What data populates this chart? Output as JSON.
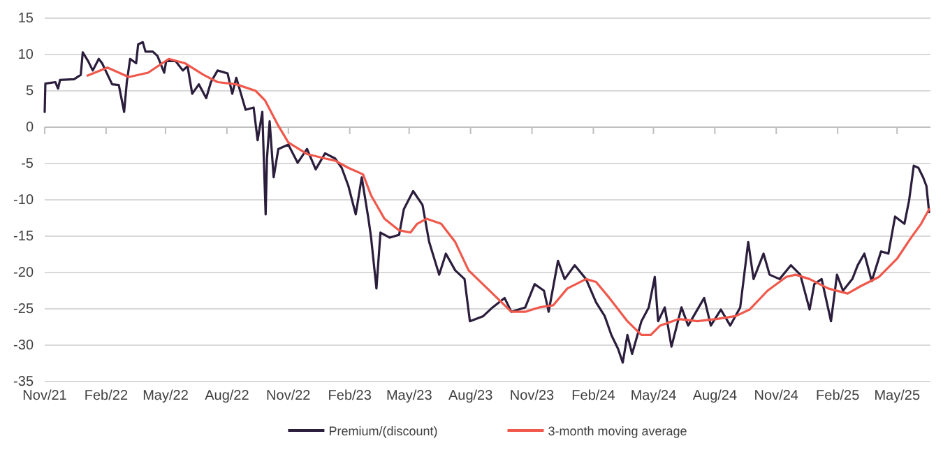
{
  "chart_data": {
    "type": "line",
    "xlim": [
      "2021-11-01",
      "2025-06-20"
    ],
    "xticks": [
      {
        "value": "2021-11-01",
        "label": "Nov/21"
      },
      {
        "value": "2022-02-01",
        "label": "Feb/22"
      },
      {
        "value": "2022-05-01",
        "label": "May/22"
      },
      {
        "value": "2022-08-01",
        "label": "Aug/22"
      },
      {
        "value": "2022-11-01",
        "label": "Nov/22"
      },
      {
        "value": "2023-02-01",
        "label": "Feb/23"
      },
      {
        "value": "2023-05-01",
        "label": "May/23"
      },
      {
        "value": "2023-08-01",
        "label": "Aug/23"
      },
      {
        "value": "2023-11-01",
        "label": "Nov/23"
      },
      {
        "value": "2024-02-01",
        "label": "Feb/24"
      },
      {
        "value": "2024-05-01",
        "label": "May/24"
      },
      {
        "value": "2024-08-01",
        "label": "Aug/24"
      },
      {
        "value": "2024-11-01",
        "label": "Nov/24"
      },
      {
        "value": "2025-02-01",
        "label": "Feb/25"
      },
      {
        "value": "2025-05-01",
        "label": "May/25"
      }
    ],
    "ylim": [
      -35,
      15
    ],
    "yticks": [
      -35,
      -30,
      -25,
      -20,
      -15,
      -10,
      -5,
      0,
      5,
      10,
      15
    ],
    "grid": "y",
    "legend": "bottom",
    "ref_lines": [
      {
        "axis": "y",
        "value": 0,
        "color": "#bfbfbf"
      }
    ],
    "line_style": "solid",
    "marker": "none",
    "series": [
      {
        "name": "Premium/(discount)",
        "color": "#2b1d3c",
        "x": [
          "2021-11-01",
          "2021-11-02",
          "2021-11-17",
          "2021-11-21",
          "2021-11-24",
          "2021-12-15",
          "2021-12-25",
          "2021-12-28",
          "2022-01-05",
          "2022-01-12",
          "2022-01-21",
          "2022-01-26",
          "2022-02-10",
          "2022-02-20",
          "2022-02-28",
          "2022-03-04",
          "2022-03-09",
          "2022-03-18",
          "2022-03-21",
          "2022-03-28",
          "2022-04-01",
          "2022-04-12",
          "2022-04-19",
          "2022-04-29",
          "2022-05-02",
          "2022-05-16",
          "2022-05-27",
          "2022-06-03",
          "2022-06-10",
          "2022-06-20",
          "2022-07-01",
          "2022-07-08",
          "2022-07-18",
          "2022-08-02",
          "2022-08-09",
          "2022-08-15",
          "2022-08-22",
          "2022-08-29",
          "2022-09-10",
          "2022-09-16",
          "2022-09-23",
          "2022-09-28",
          "2022-09-30",
          "2022-10-04",
          "2022-10-10",
          "2022-10-17",
          "2022-11-01",
          "2022-11-15",
          "2022-11-29",
          "2022-12-12",
          "2022-12-26",
          "2023-01-10",
          "2023-01-20",
          "2023-01-30",
          "2023-02-10",
          "2023-02-19",
          "2023-03-01",
          "2023-03-05",
          "2023-03-13",
          "2023-03-19",
          "2023-04-02",
          "2023-04-16",
          "2023-04-23",
          "2023-05-07",
          "2023-05-21",
          "2023-05-31",
          "2023-06-15",
          "2023-06-25",
          "2023-07-09",
          "2023-07-23",
          "2023-07-31",
          "2023-08-20",
          "2023-09-03",
          "2023-09-21",
          "2023-10-01",
          "2023-10-22",
          "2023-11-05",
          "2023-11-19",
          "2023-11-26",
          "2023-12-10",
          "2023-12-20",
          "2024-01-04",
          "2024-01-21",
          "2024-02-05",
          "2024-02-18",
          "2024-02-28",
          "2024-03-09",
          "2024-03-16",
          "2024-03-23",
          "2024-03-30",
          "2024-04-13",
          "2024-04-24",
          "2024-05-03",
          "2024-05-08",
          "2024-05-18",
          "2024-05-28",
          "2024-06-12",
          "2024-06-22",
          "2024-07-16",
          "2024-07-26",
          "2024-08-10",
          "2024-08-24",
          "2024-09-08",
          "2024-09-20",
          "2024-09-28",
          "2024-10-13",
          "2024-10-22",
          "2024-11-06",
          "2024-11-23",
          "2024-12-07",
          "2024-12-21",
          "2024-12-28",
          "2025-01-08",
          "2025-01-22",
          "2025-01-31",
          "2025-02-09",
          "2025-02-23",
          "2025-03-03",
          "2025-03-13",
          "2025-03-24",
          "2025-04-07",
          "2025-04-18",
          "2025-04-28",
          "2025-05-12",
          "2025-05-19",
          "2025-05-26",
          "2025-06-02",
          "2025-06-09",
          "2025-06-14",
          "2025-06-18"
        ],
        "values": [
          2.1,
          6.0,
          6.2,
          5.3,
          6.5,
          6.6,
          7.2,
          10.3,
          9.1,
          7.8,
          9.4,
          8.8,
          5.9,
          5.8,
          2.1,
          6.2,
          9.4,
          8.8,
          11.4,
          11.7,
          10.4,
          10.4,
          9.8,
          7.5,
          9.1,
          9.1,
          7.8,
          8.4,
          4.6,
          5.9,
          4.0,
          6.2,
          7.8,
          7.4,
          4.6,
          6.8,
          4.6,
          2.4,
          2.7,
          -1.8,
          2.1,
          -12,
          -4.3,
          0.8,
          -6.9,
          -3.0,
          -2.4,
          -4.9,
          -3.0,
          -5.8,
          -3.6,
          -4.3,
          -5.6,
          -8.1,
          -12,
          -6.9,
          -12.6,
          -15.2,
          -22.2,
          -14.5,
          -15.2,
          -14.8,
          -11.3,
          -8.8,
          -10.7,
          -15.8,
          -20.3,
          -17.4,
          -19.7,
          -20.9,
          -26.7,
          -26,
          -24.8,
          -23.5,
          -25.4,
          -24.8,
          -21.6,
          -22.5,
          -25.4,
          -18.4,
          -20.9,
          -19.0,
          -20.9,
          -24.1,
          -26,
          -28.6,
          -30.5,
          -32.4,
          -28.6,
          -31.2,
          -26.7,
          -24.8,
          -20.6,
          -26.7,
          -24.8,
          -30.2,
          -24.8,
          -27.3,
          -23.5,
          -27.3,
          -25.1,
          -27.3,
          -24.8,
          -15.8,
          -20.9,
          -17.4,
          -20.3,
          -20.9,
          -19.0,
          -20.3,
          -25.1,
          -21.6,
          -20.9,
          -26.7,
          -20.3,
          -22.5,
          -20.9,
          -19.0,
          -17.4,
          -21.2,
          -17.1,
          -17.4,
          -12.3,
          -13.3,
          -10.1,
          -5.3,
          -5.6,
          -6.9,
          -8.1,
          -11.7
        ]
      },
      {
        "name": "3-month moving average",
        "color": "#f0584c",
        "x": [
          "2022-01-04",
          "2022-02-03",
          "2022-03-07",
          "2022-04-05",
          "2022-05-06",
          "2022-05-30",
          "2022-06-27",
          "2022-07-18",
          "2022-08-15",
          "2022-09-13",
          "2022-09-27",
          "2022-10-17",
          "2022-11-01",
          "2022-11-29",
          "2022-12-26",
          "2023-01-10",
          "2023-01-30",
          "2023-02-21",
          "2023-03-05",
          "2023-03-25",
          "2023-04-16",
          "2023-05-03",
          "2023-05-13",
          "2023-05-27",
          "2023-06-18",
          "2023-07-09",
          "2023-07-29",
          "2023-09-03",
          "2023-10-01",
          "2023-10-22",
          "2023-11-12",
          "2023-12-03",
          "2023-12-24",
          "2024-01-21",
          "2024-02-05",
          "2024-02-25",
          "2024-03-23",
          "2024-04-13",
          "2024-04-27",
          "2024-05-11",
          "2024-06-08",
          "2024-07-06",
          "2024-08-03",
          "2024-09-01",
          "2024-09-22",
          "2024-10-19",
          "2024-11-16",
          "2024-11-30",
          "2024-12-21",
          "2025-01-18",
          "2025-02-16",
          "2025-03-07",
          "2025-04-04",
          "2025-05-01",
          "2025-05-22",
          "2025-06-06",
          "2025-06-18"
        ],
        "values": [
          7.1,
          8.2,
          6.9,
          7.5,
          9.4,
          8.8,
          7.2,
          6.2,
          5.9,
          5.0,
          3.7,
          0.2,
          -2.1,
          -3.7,
          -4.3,
          -4.6,
          -5.6,
          -6.5,
          -9.4,
          -12.6,
          -14.2,
          -14.5,
          -13.3,
          -12.6,
          -13.3,
          -15.8,
          -19.7,
          -22.9,
          -25.4,
          -25.4,
          -24.8,
          -24.5,
          -22.2,
          -20.9,
          -21.3,
          -23.5,
          -26.7,
          -28.6,
          -28.6,
          -27.3,
          -26.4,
          -26.7,
          -26.4,
          -26.0,
          -25.1,
          -22.5,
          -20.6,
          -20.3,
          -20.9,
          -22.2,
          -22.9,
          -21.9,
          -20.6,
          -18.1,
          -15.2,
          -13.3,
          -11.3
        ]
      }
    ]
  }
}
